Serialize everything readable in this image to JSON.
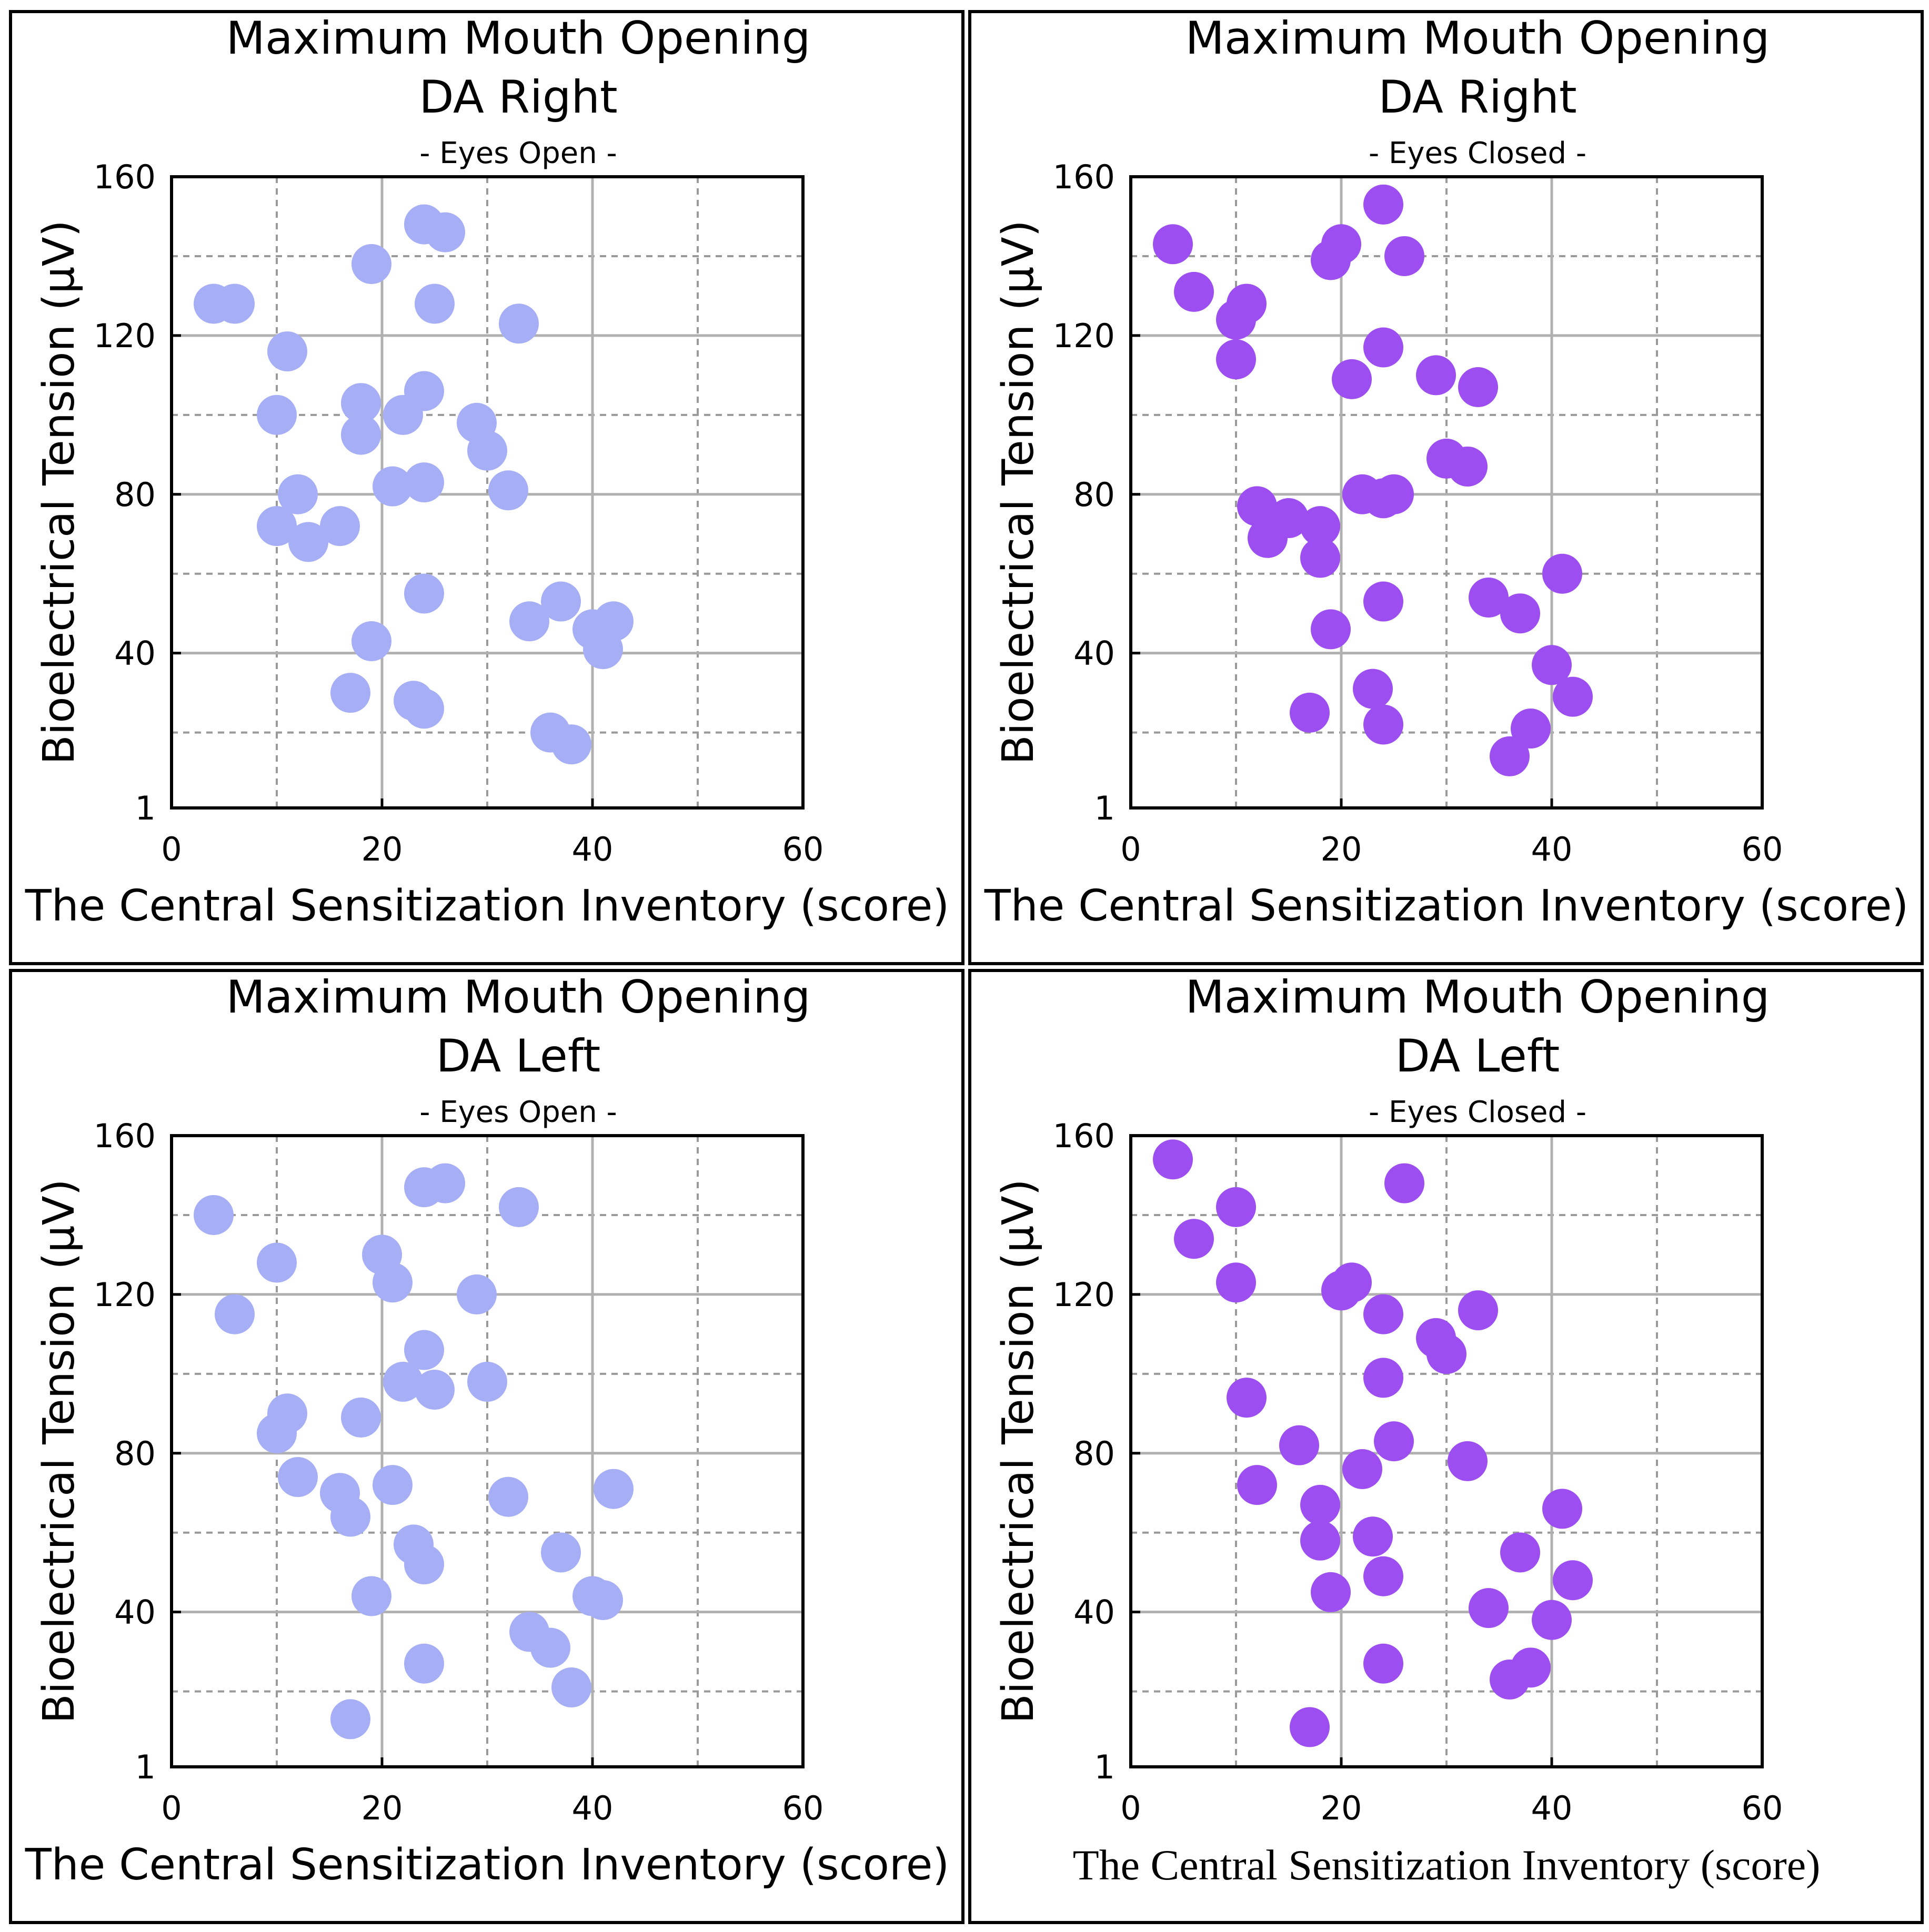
{
  "chart_data": [
    {
      "type": "scatter",
      "title": "Maximum Mouth Opening",
      "subtitle": "DA Right",
      "condition": "- Eyes Open -",
      "xlabel": "The Central Sensitization Inventory (score)",
      "ylabel": "Bioelectrical Tension (µV)",
      "xlim": [
        0,
        60
      ],
      "ylim": [
        1,
        160
      ],
      "xticks": [
        "0",
        "20",
        "40",
        "60"
      ],
      "yticks": [
        "1",
        "40",
        "80",
        "120",
        "160"
      ],
      "grid": true,
      "color": "#a6aef6",
      "x": [
        4,
        6,
        11,
        10,
        10,
        12,
        13,
        16,
        17,
        18,
        18,
        19,
        19,
        21,
        22,
        23,
        24,
        24,
        24,
        24,
        24,
        25,
        26,
        29,
        30,
        32,
        33,
        34,
        36,
        37,
        38,
        40,
        41,
        42
      ],
      "y": [
        128,
        128,
        116,
        100,
        72,
        80,
        68,
        72,
        30,
        103,
        95,
        138,
        43,
        82,
        100,
        28,
        148,
        106,
        83,
        55,
        26,
        128,
        146,
        98,
        91,
        81,
        123,
        48,
        20,
        53,
        17,
        46,
        41,
        48
      ]
    },
    {
      "type": "scatter",
      "title": "Maximum Mouth Opening",
      "subtitle": "DA Right",
      "condition": "- Eyes Closed -",
      "xlabel": "The Central Sensitization Inventory (score)",
      "ylabel": "Bioelectrical Tension (µV)",
      "xlim": [
        0,
        60
      ],
      "ylim": [
        1,
        160
      ],
      "xticks": [
        "0",
        "20",
        "40",
        "60"
      ],
      "yticks": [
        "1",
        "40",
        "80",
        "120",
        "160"
      ],
      "grid": true,
      "color": "#9d4ef0",
      "x": [
        4,
        6,
        10,
        11,
        10,
        12,
        13,
        15,
        18,
        18,
        17,
        19,
        19,
        20,
        21,
        22,
        24,
        24,
        23,
        24,
        24,
        25,
        26,
        24,
        29,
        30,
        32,
        33,
        34,
        36,
        37,
        38,
        40,
        41,
        42
      ],
      "y": [
        143,
        131,
        124,
        128,
        114,
        77,
        69,
        74,
        72,
        64,
        25,
        46,
        139,
        143,
        109,
        80,
        117,
        79,
        31,
        22,
        53,
        80,
        140,
        153,
        110,
        89,
        87,
        107,
        54,
        14,
        50,
        21,
        37,
        60,
        29
      ]
    },
    {
      "type": "scatter",
      "title": "Maximum Mouth Opening",
      "subtitle": "DA Left",
      "condition": "- Eyes Open -",
      "xlabel": "The Central Sensitization Inventory (score)",
      "ylabel": "Bioelectrical Tension (µV)",
      "xlim": [
        0,
        60
      ],
      "ylim": [
        1,
        160
      ],
      "xticks": [
        "0",
        "20",
        "40",
        "60"
      ],
      "yticks": [
        "1",
        "40",
        "80",
        "120",
        "160"
      ],
      "grid": true,
      "color": "#a6aef6",
      "x": [
        4,
        6,
        10,
        10,
        11,
        12,
        16,
        17,
        17,
        18,
        19,
        20,
        21,
        21,
        22,
        23,
        24,
        24,
        24,
        24,
        25,
        26,
        29,
        30,
        32,
        33,
        34,
        36,
        37,
        38,
        40,
        41,
        42
      ],
      "y": [
        140,
        115,
        128,
        85,
        90,
        74,
        70,
        64,
        13,
        89,
        44,
        130,
        123,
        72,
        98,
        57,
        147,
        106,
        52,
        27,
        96,
        148,
        120,
        98,
        69,
        142,
        35,
        31,
        55,
        21,
        44,
        43,
        71
      ]
    },
    {
      "type": "scatter",
      "title": "Maximum Mouth Opening",
      "subtitle": "DA Left",
      "condition": "- Eyes Closed -",
      "xlabel": "The Central Sensitization Inventory (score)",
      "ylabel": "Bioelectrical Tension (µV)",
      "xlim": [
        0,
        60
      ],
      "ylim": [
        1,
        160
      ],
      "xticks": [
        "0",
        "20",
        "40",
        "60"
      ],
      "yticks": [
        "1",
        "40",
        "80",
        "120",
        "160"
      ],
      "grid": true,
      "color": "#9d4ef0",
      "x": [
        4,
        6,
        10,
        10,
        11,
        12,
        16,
        18,
        18,
        19,
        20,
        21,
        22,
        23,
        24,
        24,
        24,
        24,
        25,
        26,
        29,
        30,
        32,
        33,
        34,
        36,
        37,
        38,
        40,
        41,
        42,
        17
      ],
      "y": [
        154,
        134,
        142,
        123,
        94,
        72,
        82,
        67,
        58,
        45,
        121,
        123,
        76,
        59,
        115,
        99,
        49,
        27,
        83,
        148,
        109,
        105,
        78,
        116,
        41,
        23,
        55,
        26,
        38,
        66,
        48,
        11
      ]
    }
  ]
}
